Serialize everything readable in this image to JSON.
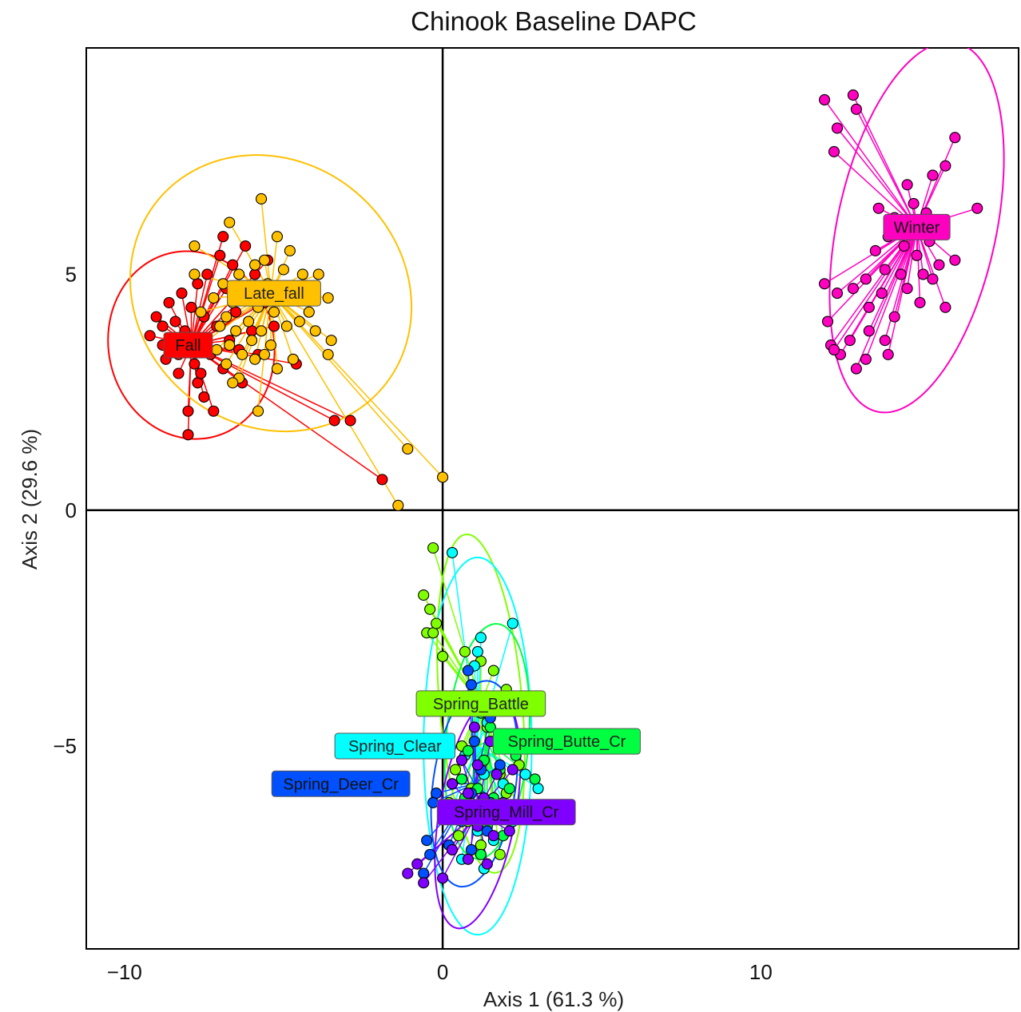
{
  "chart_data": {
    "type": "scatter",
    "title": "Chinook Baseline DAPC",
    "xlabel": "Axis 1 (61.3 %)",
    "ylabel": "Axis 2 (29.6 %)",
    "xlim": [
      -11.2,
      18.1
    ],
    "ylim": [
      -9.3,
      9.8
    ],
    "x_ticks": [
      -10,
      0,
      10
    ],
    "x_tick_labels": [
      "−10",
      "0",
      "10"
    ],
    "y_ticks": [
      -5,
      0,
      5
    ],
    "y_tick_labels": [
      "−5",
      "0",
      "5"
    ],
    "grid": false,
    "reference_lines": {
      "x": 0,
      "y": 0
    },
    "series": [
      {
        "name": "Fall",
        "color": "#ff0000",
        "centroid": [
          -7.9,
          3.5
        ],
        "label_at": [
          -8.0,
          3.5
        ],
        "ellipse": {
          "rx": 2.6,
          "ry": 2.0,
          "angle": -12
        },
        "points": [
          [
            -9.2,
            3.7
          ],
          [
            -9.0,
            4.1
          ],
          [
            -8.8,
            3.9
          ],
          [
            -8.7,
            3.2
          ],
          [
            -8.6,
            4.4
          ],
          [
            -8.5,
            3.6
          ],
          [
            -8.4,
            4.0
          ],
          [
            -8.3,
            3.3
          ],
          [
            -8.3,
            2.9
          ],
          [
            -8.2,
            4.6
          ],
          [
            -8.1,
            3.8
          ],
          [
            -8.0,
            3.4
          ],
          [
            -8.0,
            2.1
          ],
          [
            -8.0,
            1.6
          ],
          [
            -7.9,
            4.3
          ],
          [
            -7.8,
            3.1
          ],
          [
            -7.7,
            2.7
          ],
          [
            -7.7,
            4.8
          ],
          [
            -7.6,
            3.6
          ],
          [
            -7.5,
            4.1
          ],
          [
            -7.5,
            2.4
          ],
          [
            -7.4,
            5.0
          ],
          [
            -7.3,
            3.3
          ],
          [
            -7.2,
            4.5
          ],
          [
            -7.1,
            3.9
          ],
          [
            -7.0,
            5.4
          ],
          [
            -6.9,
            3.0
          ],
          [
            -6.8,
            4.7
          ],
          [
            -6.7,
            3.6
          ],
          [
            -6.6,
            5.2
          ],
          [
            -6.5,
            4.2
          ],
          [
            -6.4,
            3.4
          ],
          [
            -6.3,
            2.7
          ],
          [
            -6.2,
            5.6
          ],
          [
            -6.1,
            4.6
          ],
          [
            -6.0,
            3.8
          ],
          [
            -5.9,
            5.0
          ],
          [
            -5.8,
            3.3
          ],
          [
            -5.6,
            4.4
          ],
          [
            -5.5,
            5.3
          ],
          [
            -5.3,
            3.9
          ],
          [
            -5.0,
            4.7
          ],
          [
            -4.6,
            3.1
          ],
          [
            -3.4,
            1.9
          ],
          [
            -2.9,
            1.9
          ],
          [
            -1.9,
            0.65
          ],
          [
            -7.2,
            2.1
          ],
          [
            -6.9,
            5.8
          ],
          [
            -7.6,
            2.9
          ],
          [
            -8.8,
            3.5
          ]
        ]
      },
      {
        "name": "Late_fall",
        "color": "#ffc000",
        "centroid": [
          -5.4,
          4.6
        ],
        "label_at": [
          -5.3,
          4.6
        ],
        "ellipse": {
          "rx": 4.6,
          "ry": 2.8,
          "angle": 40
        },
        "points": [
          [
            -7.8,
            5.0
          ],
          [
            -7.6,
            4.2
          ],
          [
            -7.4,
            3.6
          ],
          [
            -7.2,
            4.5
          ],
          [
            -7.1,
            3.4
          ],
          [
            -7.0,
            3.9
          ],
          [
            -6.9,
            4.8
          ],
          [
            -6.8,
            3.1
          ],
          [
            -6.8,
            4.1
          ],
          [
            -6.7,
            3.5
          ],
          [
            -6.6,
            4.4
          ],
          [
            -6.5,
            3.8
          ],
          [
            -6.4,
            5.0
          ],
          [
            -6.4,
            2.8
          ],
          [
            -6.3,
            3.3
          ],
          [
            -6.2,
            4.6
          ],
          [
            -6.1,
            4.0
          ],
          [
            -6.0,
            3.6
          ],
          [
            -5.9,
            5.2
          ],
          [
            -5.9,
            3.2
          ],
          [
            -5.8,
            4.3
          ],
          [
            -5.7,
            3.8
          ],
          [
            -5.6,
            5.3
          ],
          [
            -5.5,
            4.8
          ],
          [
            -5.4,
            3.5
          ],
          [
            -5.3,
            4.2
          ],
          [
            -5.2,
            3.0
          ],
          [
            -5.1,
            4.6
          ],
          [
            -5.0,
            5.1
          ],
          [
            -4.9,
            3.9
          ],
          [
            -4.8,
            4.5
          ],
          [
            -4.7,
            3.2
          ],
          [
            -4.5,
            4.0
          ],
          [
            -4.4,
            5.0
          ],
          [
            -4.2,
            4.2
          ],
          [
            -4.0,
            3.8
          ],
          [
            -3.9,
            5.0
          ],
          [
            -3.6,
            4.5
          ],
          [
            -3.5,
            3.6
          ],
          [
            -3.6,
            3.3
          ],
          [
            -5.7,
            6.6
          ],
          [
            -6.7,
            6.1
          ],
          [
            -7.8,
            5.6
          ],
          [
            -5.2,
            5.8
          ],
          [
            -4.8,
            5.5
          ],
          [
            -5.8,
            2.1
          ],
          [
            -6.6,
            2.7
          ],
          [
            -1.1,
            1.3
          ],
          [
            -0.0,
            0.7
          ],
          [
            -1.4,
            0.1
          ],
          [
            -5.6,
            3.3
          ]
        ]
      },
      {
        "name": "Winter",
        "color": "#ff00c0",
        "centroid": [
          14.9,
          6.0
        ],
        "label_at": [
          14.9,
          6.0
        ],
        "ellipse": {
          "rx": 2.5,
          "ry": 4.0,
          "angle": 12
        },
        "points": [
          [
            12.0,
            8.7
          ],
          [
            12.9,
            8.8
          ],
          [
            13.0,
            8.5
          ],
          [
            12.4,
            8.1
          ],
          [
            12.3,
            7.6
          ],
          [
            16.1,
            7.9
          ],
          [
            16.8,
            6.4
          ],
          [
            15.8,
            7.3
          ],
          [
            15.4,
            7.1
          ],
          [
            14.6,
            6.9
          ],
          [
            14.8,
            6.5
          ],
          [
            15.2,
            6.3
          ],
          [
            14.2,
            6.2
          ],
          [
            15.6,
            6.0
          ],
          [
            14.0,
            5.8
          ],
          [
            14.5,
            5.6
          ],
          [
            14.9,
            5.4
          ],
          [
            15.3,
            5.7
          ],
          [
            13.6,
            5.5
          ],
          [
            13.9,
            5.1
          ],
          [
            14.4,
            5.0
          ],
          [
            15.1,
            5.0
          ],
          [
            15.6,
            5.2
          ],
          [
            13.3,
            4.9
          ],
          [
            13.8,
            4.6
          ],
          [
            14.6,
            4.7
          ],
          [
            15.4,
            4.9
          ],
          [
            12.9,
            4.7
          ],
          [
            13.4,
            4.3
          ],
          [
            14.2,
            4.1
          ],
          [
            15.0,
            4.4
          ],
          [
            12.4,
            4.6
          ],
          [
            12.1,
            4.0
          ],
          [
            12.8,
            3.6
          ],
          [
            13.4,
            3.8
          ],
          [
            14.0,
            3.3
          ],
          [
            12.2,
            3.5
          ],
          [
            12.5,
            3.3
          ],
          [
            13.0,
            3.0
          ],
          [
            15.8,
            4.3
          ],
          [
            16.1,
            5.3
          ],
          [
            13.7,
            6.4
          ],
          [
            14.4,
            5.9
          ],
          [
            13.9,
            3.6
          ],
          [
            12.3,
            3.4
          ],
          [
            13.3,
            3.2
          ],
          [
            12.0,
            4.8
          ]
        ]
      },
      {
        "name": "Spring_Battle",
        "color": "#80ff00",
        "centroid": [
          1.2,
          -4.1
        ],
        "label_at": [
          1.2,
          -4.1
        ],
        "ellipse": {
          "rx": 1.3,
          "ry": 3.6,
          "angle": -5
        },
        "points": [
          [
            -0.3,
            -0.8
          ],
          [
            -0.6,
            -1.8
          ],
          [
            -0.4,
            -2.1
          ],
          [
            -0.5,
            -2.6
          ],
          [
            -0.3,
            -2.6
          ],
          [
            -0.2,
            -2.4
          ],
          [
            0.0,
            -3.1
          ],
          [
            0.7,
            -3.0
          ],
          [
            1.2,
            -3.2
          ],
          [
            1.6,
            -3.4
          ],
          [
            2.0,
            -3.8
          ],
          [
            1.4,
            -4.6
          ],
          [
            0.6,
            -5.0
          ],
          [
            0.4,
            -5.5
          ],
          [
            0.9,
            -5.9
          ],
          [
            1.8,
            -5.6
          ],
          [
            2.4,
            -5.4
          ],
          [
            0.2,
            -6.2
          ],
          [
            0.8,
            -6.6
          ],
          [
            1.6,
            -6.4
          ],
          [
            2.0,
            -6.0
          ],
          [
            0.5,
            -6.9
          ],
          [
            1.2,
            -7.1
          ],
          [
            1.8,
            -7.3
          ],
          [
            2.4,
            -6.4
          ]
        ]
      },
      {
        "name": "Spring_Clear",
        "color": "#00ffff",
        "centroid": [
          1.1,
          -5.0
        ],
        "label_at": [
          -1.5,
          -5.0
        ],
        "ellipse": {
          "rx": 1.7,
          "ry": 4.0,
          "angle": 0
        },
        "points": [
          [
            0.3,
            -0.9
          ],
          [
            2.2,
            -2.4
          ],
          [
            1.2,
            -2.7
          ],
          [
            1.1,
            -3.0
          ],
          [
            1.0,
            -3.3
          ],
          [
            1.4,
            -4.5
          ],
          [
            0.7,
            -5.2
          ],
          [
            1.3,
            -5.6
          ],
          [
            1.9,
            -5.8
          ],
          [
            2.6,
            -5.6
          ],
          [
            3.0,
            -5.9
          ],
          [
            0.3,
            -6.3
          ],
          [
            1.1,
            -6.8
          ],
          [
            1.6,
            -7.0
          ],
          [
            2.2,
            -6.6
          ],
          [
            0.6,
            -7.4
          ],
          [
            1.3,
            -7.6
          ]
        ]
      },
      {
        "name": "Spring_Butte_Cr",
        "color": "#00ff40",
        "centroid": [
          1.4,
          -4.9
        ],
        "label_at": [
          3.9,
          -4.9
        ],
        "ellipse": {
          "rx": 1.3,
          "ry": 2.5,
          "angle": 5
        },
        "points": [
          [
            1.2,
            -4.3
          ],
          [
            1.5,
            -4.6
          ],
          [
            1.9,
            -4.9
          ],
          [
            0.8,
            -5.1
          ],
          [
            1.3,
            -5.3
          ],
          [
            1.8,
            -5.5
          ],
          [
            2.3,
            -5.2
          ],
          [
            0.6,
            -5.7
          ],
          [
            1.1,
            -5.9
          ],
          [
            1.6,
            -6.1
          ],
          [
            2.1,
            -5.9
          ],
          [
            2.9,
            -5.7
          ],
          [
            0.9,
            -6.4
          ],
          [
            1.4,
            -6.7
          ],
          [
            1.9,
            -6.9
          ],
          [
            1.2,
            -7.3
          ],
          [
            0.7,
            -6.1
          ]
        ]
      },
      {
        "name": "Spring_Deer_Cr",
        "color": "#0050ff",
        "centroid": [
          1.0,
          -5.8
        ],
        "label_at": [
          -3.2,
          -5.8
        ],
        "ellipse": {
          "rx": 1.3,
          "ry": 2.2,
          "angle": 8
        },
        "points": [
          [
            0.8,
            -3.4
          ],
          [
            0.9,
            -3.7
          ],
          [
            1.5,
            -4.4
          ],
          [
            1.0,
            -4.9
          ],
          [
            0.6,
            -5.3
          ],
          [
            1.2,
            -5.5
          ],
          [
            1.8,
            -5.4
          ],
          [
            0.3,
            -5.8
          ],
          [
            0.9,
            -6.0
          ],
          [
            1.5,
            -6.2
          ],
          [
            -0.2,
            -6.0
          ],
          [
            -0.3,
            -6.2
          ],
          [
            -0.5,
            -7.0
          ],
          [
            -0.4,
            -7.3
          ],
          [
            -0.6,
            -7.7
          ],
          [
            0.2,
            -7.1
          ],
          [
            0.9,
            -7.2
          ],
          [
            1.4,
            -6.8
          ],
          [
            2.0,
            -6.4
          ],
          [
            0.6,
            -6.6
          ]
        ]
      },
      {
        "name": "Spring_Mill_Cr",
        "color": "#8000ff",
        "centroid": [
          1.1,
          -6.4
        ],
        "label_at": [
          2.0,
          -6.4
        ],
        "ellipse": {
          "rx": 1.2,
          "ry": 2.5,
          "angle": 10
        },
        "points": [
          [
            1.0,
            -4.6
          ],
          [
            1.5,
            -4.9
          ],
          [
            0.6,
            -5.3
          ],
          [
            1.1,
            -5.4
          ],
          [
            1.7,
            -5.6
          ],
          [
            2.2,
            -5.5
          ],
          [
            0.3,
            -5.8
          ],
          [
            0.8,
            -6.0
          ],
          [
            1.3,
            -6.1
          ],
          [
            1.9,
            -6.2
          ],
          [
            0.5,
            -6.5
          ],
          [
            1.1,
            -6.7
          ],
          [
            1.6,
            -6.9
          ],
          [
            2.1,
            -6.8
          ],
          [
            0.3,
            -7.2
          ],
          [
            0.8,
            -7.4
          ],
          [
            1.4,
            -7.5
          ],
          [
            -0.8,
            -7.5
          ],
          [
            -1.1,
            -7.7
          ],
          [
            -0.6,
            -7.9
          ],
          [
            0.0,
            -7.8
          ],
          [
            2.3,
            -6.3
          ]
        ]
      }
    ]
  }
}
